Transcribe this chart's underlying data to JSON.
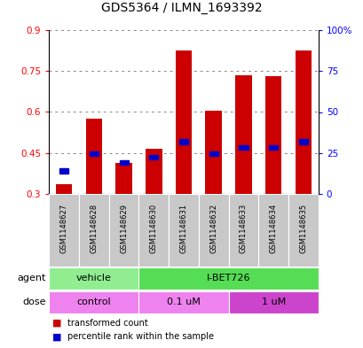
{
  "title": "GDS5364 / ILMN_1693392",
  "samples": [
    "GSM1148627",
    "GSM1148628",
    "GSM1148629",
    "GSM1148630",
    "GSM1148631",
    "GSM1148632",
    "GSM1148633",
    "GSM1148634",
    "GSM1148635"
  ],
  "red_values": [
    0.335,
    0.575,
    0.415,
    0.465,
    0.825,
    0.605,
    0.735,
    0.73,
    0.825
  ],
  "blue_values": [
    0.385,
    0.447,
    0.415,
    0.435,
    0.492,
    0.447,
    0.47,
    0.47,
    0.492
  ],
  "ylim_left": [
    0.3,
    0.9
  ],
  "ylim_right": [
    0,
    100
  ],
  "yticks_left": [
    0.3,
    0.45,
    0.6,
    0.75,
    0.9
  ],
  "yticks_right": [
    0,
    25,
    50,
    75,
    100
  ],
  "ytick_labels_left": [
    "0.3",
    "0.45",
    "0.6",
    "0.75",
    "0.9"
  ],
  "ytick_labels_right": [
    "0",
    "25",
    "50",
    "75",
    "100%"
  ],
  "bar_bottom": 0.3,
  "agent_groups": [
    {
      "label": "vehicle",
      "color": "#90EE90",
      "start": 0,
      "end": 3
    },
    {
      "label": "I-BET726",
      "color": "#55DD55",
      "start": 3,
      "end": 9
    }
  ],
  "dose_groups": [
    {
      "label": "control",
      "color": "#EE82EE",
      "start": 0,
      "end": 3
    },
    {
      "label": "0.1 uM",
      "color": "#EE82EE",
      "start": 3,
      "end": 6
    },
    {
      "label": "1 uM",
      "color": "#CC44CC",
      "start": 6,
      "end": 9
    }
  ],
  "red_color": "#CC0000",
  "blue_color": "#0000CC",
  "bar_width": 0.55,
  "bg_color": "#FFFFFF",
  "axis_bg": "#FFFFFF",
  "grid_color": "#888888",
  "label_bg": "#C8C8C8"
}
